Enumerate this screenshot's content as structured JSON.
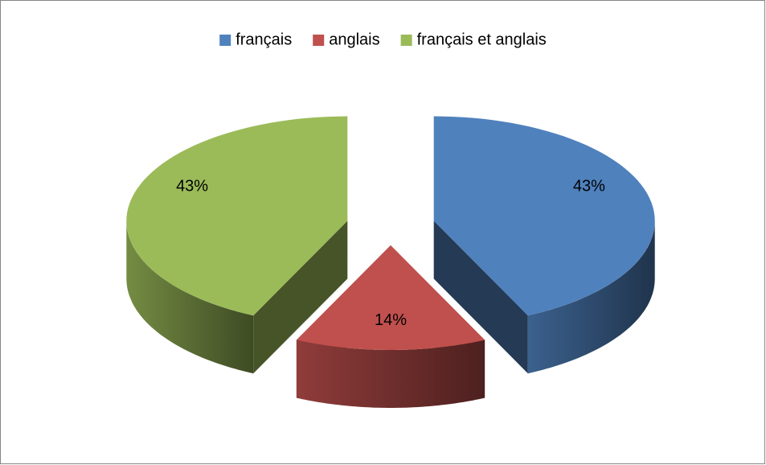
{
  "chart_data": {
    "type": "pie",
    "categories": [
      "français",
      "anglais",
      "français et anglais"
    ],
    "values": [
      43,
      14,
      43
    ],
    "value_labels": [
      "43%",
      "14%",
      "43%"
    ],
    "colors": [
      "#4f81bd",
      "#c0504d",
      "#9bbb59"
    ],
    "legend": "top"
  }
}
